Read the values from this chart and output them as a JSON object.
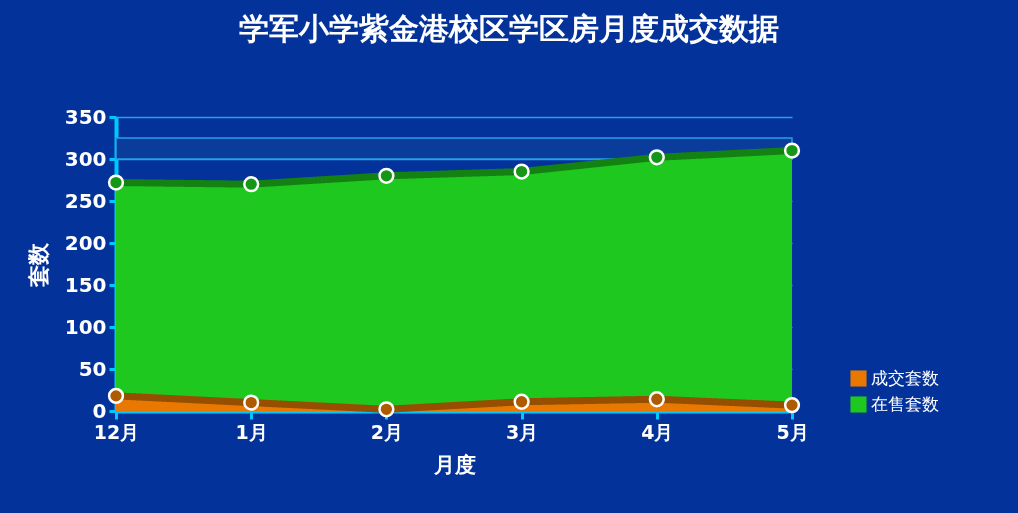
{
  "chart_data": {
    "type": "area",
    "title": "学军小学紫金港校区学区房月度成交数据",
    "xlabel": "月度",
    "ylabel": "套数",
    "categories": [
      "12月",
      "1月",
      "2月",
      "3月",
      "4月",
      "5月"
    ],
    "series": [
      {
        "name": "成交套数",
        "color": "#e87800",
        "values": [
          18,
          10,
          2,
          11,
          14,
          7
        ]
      },
      {
        "name": "在售套数",
        "color": "#1ec81e",
        "values": [
          272,
          270,
          280,
          285,
          302,
          310
        ]
      }
    ],
    "ylim": [
      0,
      350
    ],
    "yticks": [
      0,
      50,
      100,
      150,
      200,
      250,
      300,
      350
    ],
    "grid": "y",
    "bands": [
      {
        "axis": "y",
        "from": 300,
        "to": 325,
        "color": "#0a3c9c"
      }
    ],
    "legend": "bottom right",
    "marker": "circle",
    "line_style": "solid"
  }
}
